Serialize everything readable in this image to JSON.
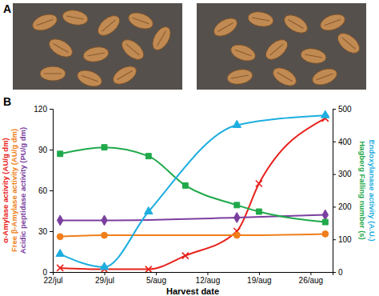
{
  "figure": {
    "panel_labels": [
      "A",
      "B"
    ]
  },
  "chart_data": {
    "type": "line",
    "xlabel": "Harvest date",
    "xlim": [
      22,
      60
    ],
    "xticks": [
      {
        "value": 22,
        "label": "22/jul"
      },
      {
        "value": 29,
        "label": "29/jul"
      },
      {
        "value": 36,
        "label": "5/aug"
      },
      {
        "value": 43,
        "label": "12/aug"
      },
      {
        "value": 50,
        "label": "19/aug"
      },
      {
        "value": 57,
        "label": "26/aug"
      }
    ],
    "ylim": [
      0,
      120
    ],
    "yticks": [
      0,
      30,
      60,
      90,
      120
    ],
    "y2lim": [
      0,
      500
    ],
    "y2ticks": [
      0,
      100,
      200,
      300,
      400,
      500
    ],
    "grid": false,
    "series": [
      {
        "name": "α-Amylase activity (AU/g dm)",
        "color": "#e8211b",
        "marker": "x",
        "line_style": "solid",
        "x": [
          23,
          29,
          35,
          40,
          47,
          50,
          59
        ],
        "values": [
          3,
          2,
          2,
          12,
          30,
          65,
          113
        ]
      },
      {
        "name": "Free β-Amylase activity (AU/g dm)",
        "color": "#f07f1b",
        "marker": "circle",
        "line_style": "solid",
        "x": [
          23,
          29,
          47,
          59
        ],
        "values": [
          26,
          27,
          27,
          28
        ]
      },
      {
        "name": "Acidic peptidase activity (PU/g dm)",
        "color": "#7b3fa0",
        "marker": "diamond",
        "line_style": "solid",
        "x": [
          23,
          29,
          47,
          59
        ],
        "values": [
          38,
          38,
          40,
          42
        ]
      },
      {
        "name": "Hagberg Falling number (s)",
        "color": "#1fa94a",
        "marker": "square",
        "line_style": "solid",
        "axis": "y2",
        "x": [
          23,
          29,
          35,
          40,
          47,
          50,
          59
        ],
        "values": [
          362,
          382,
          355,
          265,
          205,
          185,
          153
        ]
      },
      {
        "name": "Endoxylanase activity (A.U.)",
        "color": "#1eaee0",
        "marker": "triangle",
        "line_style": "solid",
        "axis": "y2",
        "x": [
          23,
          29,
          35,
          47,
          59
        ],
        "values": [
          55,
          15,
          185,
          450,
          480
        ]
      }
    ]
  }
}
